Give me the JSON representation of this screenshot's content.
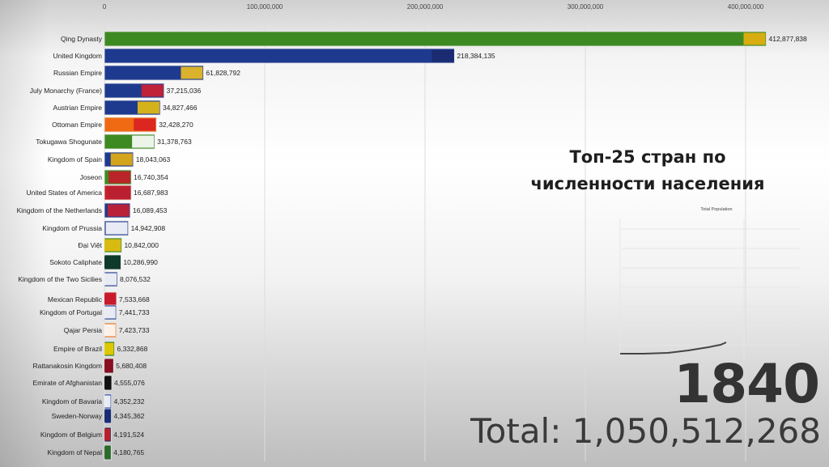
{
  "chart_data": {
    "type": "bar",
    "orientation": "horizontal",
    "xlim": [
      0,
      430000000
    ],
    "xticks": [
      "0",
      "100,000,000",
      "200,000,000",
      "300,000,000",
      "400,000,000"
    ],
    "xtick_values": [
      0,
      100000000,
      200000000,
      300000000,
      400000000
    ],
    "grid": true,
    "categories": [
      "Qing Dynasty",
      "United Kingdom",
      "Russian Empire",
      "July Monarchy (France)",
      "Austrian Empire",
      "Ottoman Empire",
      "Tokugawa Shogunate",
      "Kingdom of Spain",
      "Joseon",
      "United States of America",
      "Kingdom of the Netherlands",
      "Kingdom of Prussia",
      "Đại Việt",
      "Sokoto Caliphate",
      "Kingdom of the Two Sicilies",
      "Mexican Republic",
      "Kingdom of Portugal",
      "Qajar Persia",
      "Empire of Brazil",
      "Rattanakosin Kingdom",
      "Emirate of Afghanistan",
      "Kingdom of Bavaria",
      "Sweden-Norway",
      "Kingdom of Belgium",
      "Kingdom of Nepal"
    ],
    "values": [
      412877838,
      218384135,
      61828792,
      37215036,
      34827466,
      32428270,
      31378763,
      18043063,
      16740354,
      16687983,
      16089453,
      14942908,
      10842000,
      10286990,
      8076532,
      7533668,
      7441733,
      7423733,
      6332868,
      5680408,
      4555076,
      4352232,
      4345362,
      4191524,
      4180765
    ],
    "value_labels": [
      "412,877,838",
      "218,384,135",
      "61,828,792",
      "37,215,036",
      "34,827,466",
      "32,428,270",
      "31,378,763",
      "18,043,063",
      "16,740,354",
      "16,687,983",
      "16,089,453",
      "14,942,908",
      "10,842,000",
      "10,286,990",
      "8,076,532",
      "7,533,668",
      "7,441,733",
      "7,423,733",
      "6,332,868",
      "5,680,408",
      "4,555,076",
      "4,352,232",
      "4,345,362",
      "4,191,524",
      "4,180,765"
    ],
    "bar_colors": [
      "#3d8a22",
      "#1e3a8f",
      "#1e3a8f",
      "#1e3a8f",
      "#1e3a8f",
      "#f06a14",
      "#3d8a22",
      "#1e3a8f",
      "#3d8a22",
      "#c8202a",
      "#1e3a8f",
      "#1e3a8f",
      "#3d8a22",
      "#0d3b2a",
      "#1e3a8f",
      "#c8202a",
      "#1e3a8f",
      "#e07020",
      "#2a7a2a",
      "#7a1020",
      "#111111",
      "#1e3a8f",
      "#1e3a8f",
      "#1e2a5a",
      "#2a6a2a"
    ],
    "flag_colors": [
      "#e8b010",
      "#1a2a6e",
      "#f0c020",
      "#d02030",
      "#e8c010",
      "#d82020",
      "#ffffff",
      "#e8b010",
      "#c81a2a",
      "#b82030",
      "#c82030",
      "#ffffff",
      "#e8c010",
      "#0d3b2a",
      "#ffffff",
      "#c81a2a",
      "#ffffff",
      "#ffffff",
      "#f0d000",
      "#8a1020",
      "#111111",
      "#ffffff",
      "#1a2a6e",
      "#c8202a",
      "#2a6a2a"
    ]
  },
  "overlay": {
    "title_line1": "Топ-25 стран по",
    "title_line2": "численности населения",
    "year": "1840",
    "total": "Total: 1,050,512,268"
  },
  "inset": {
    "title": "Total Population"
  }
}
